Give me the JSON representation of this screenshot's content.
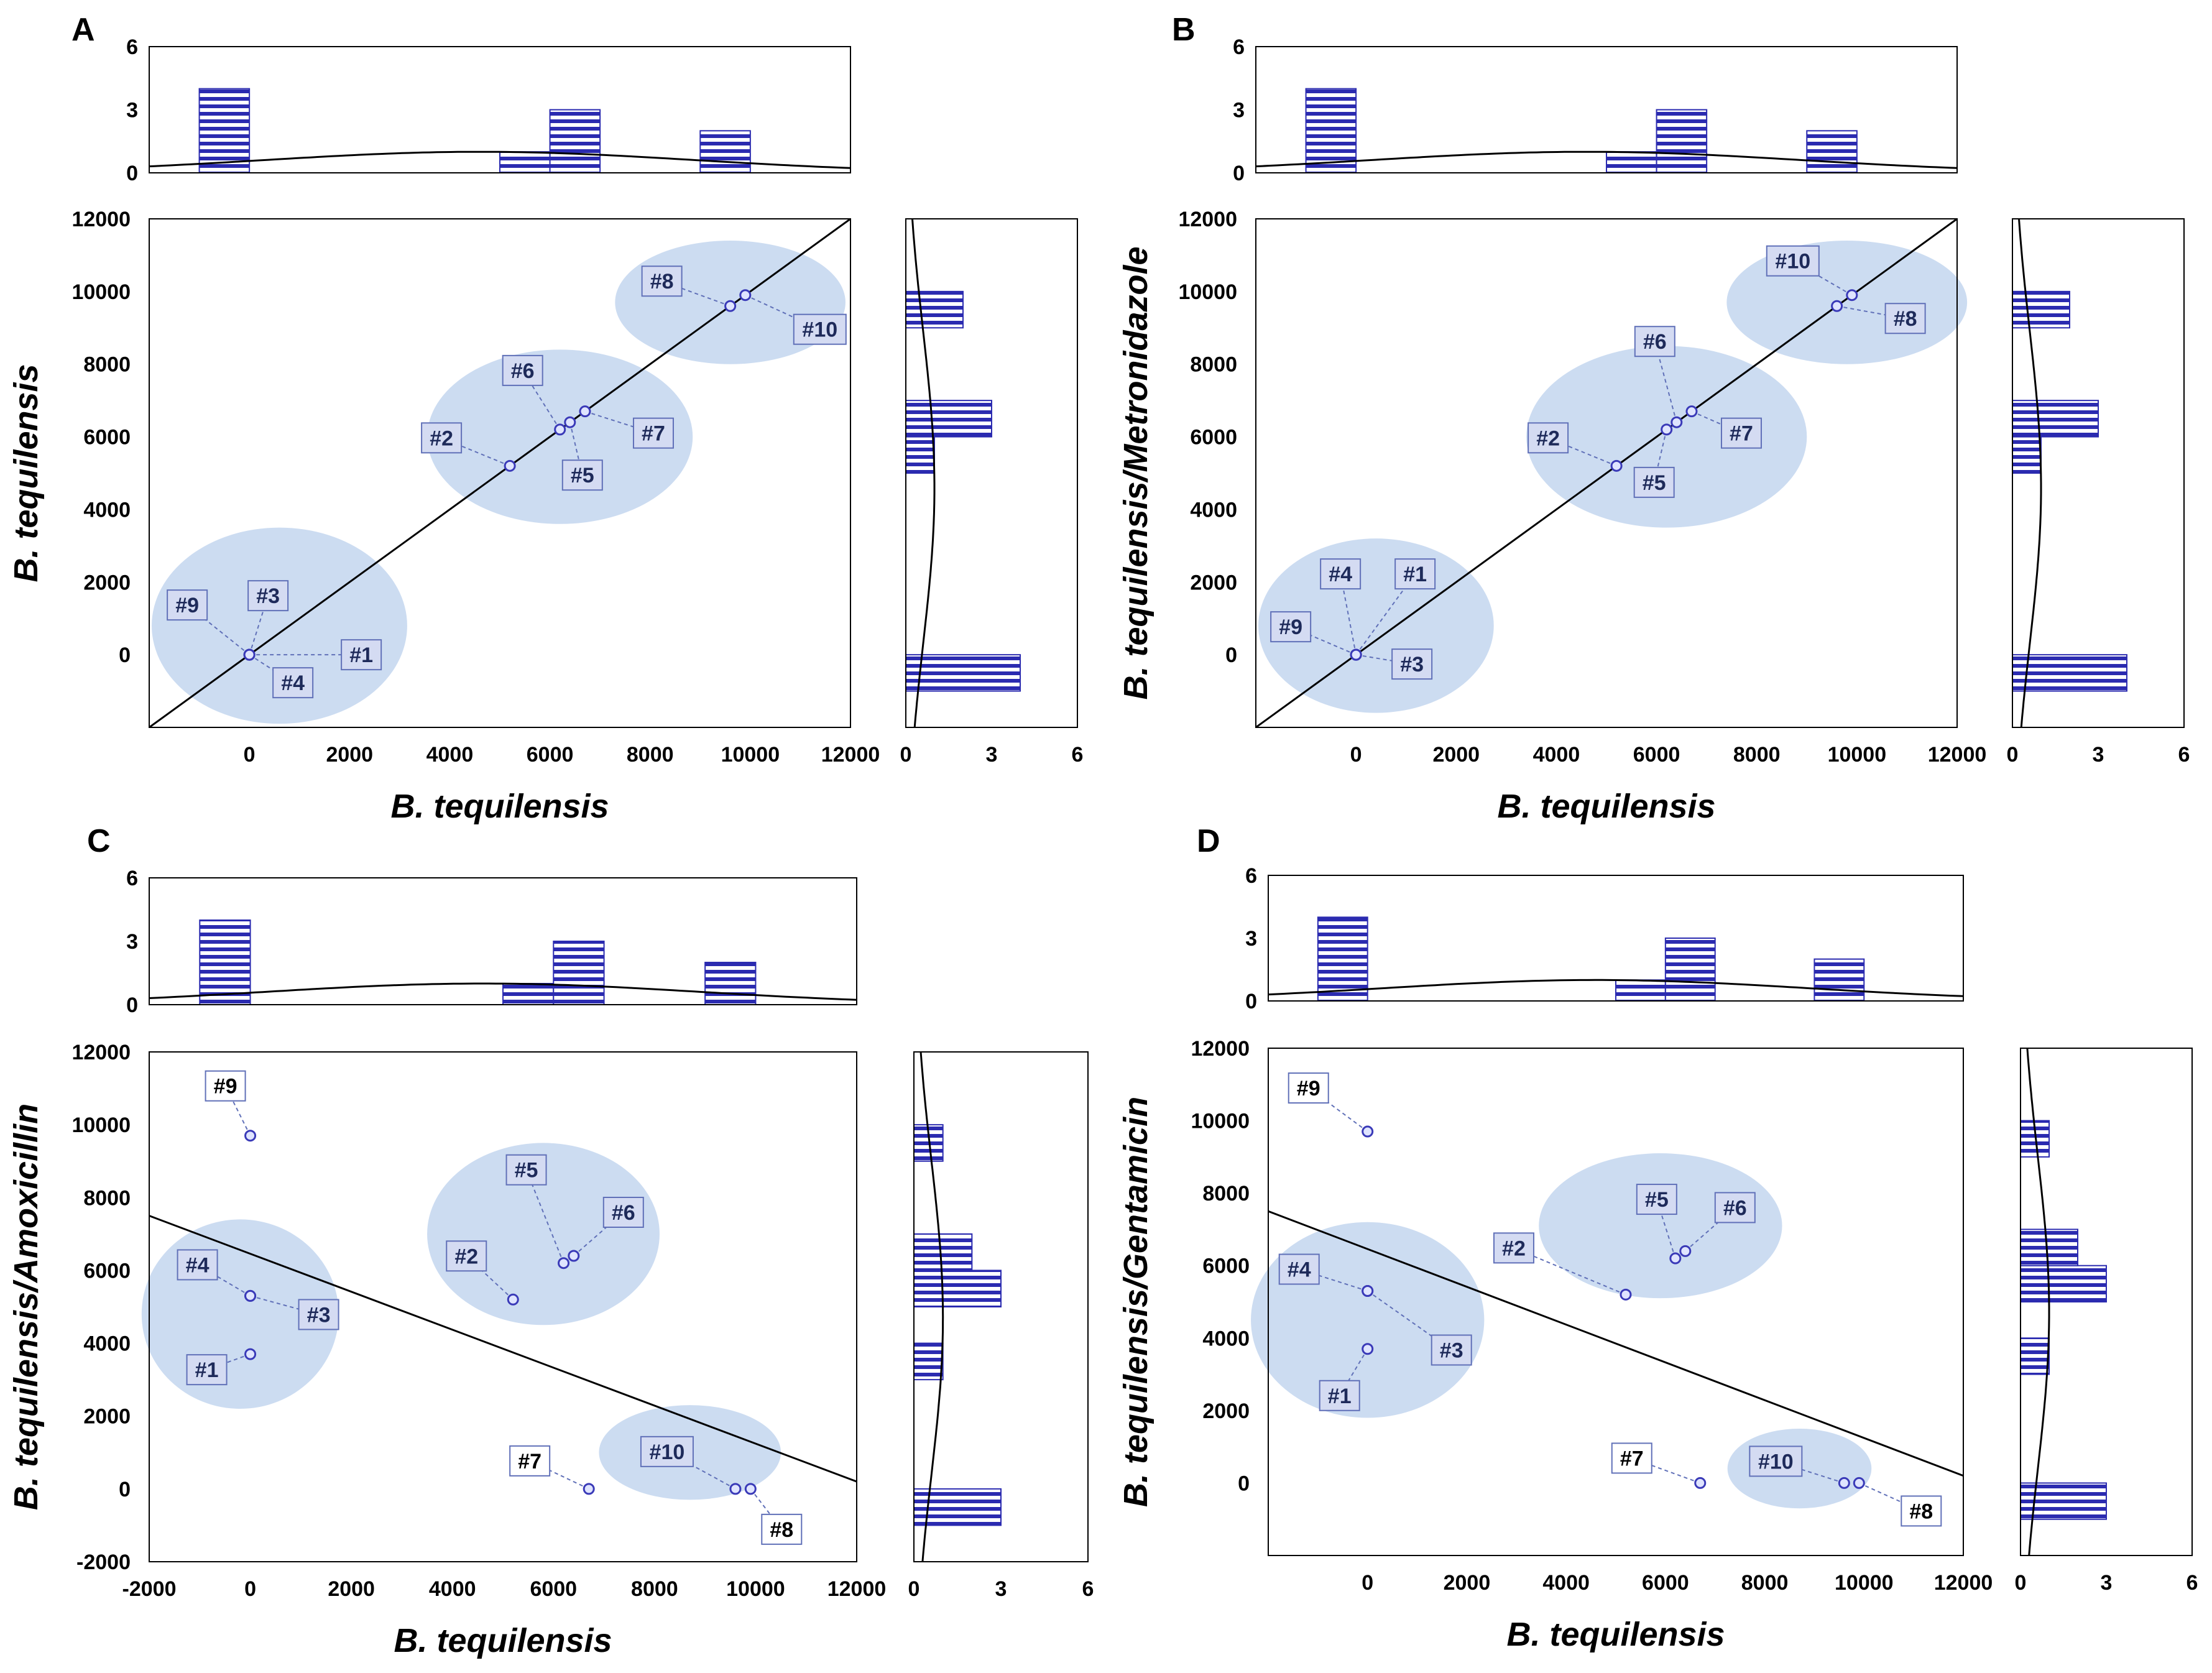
{
  "figure": {
    "description_labels": [
      "A",
      "B",
      "C",
      "D"
    ]
  },
  "colors": {
    "ellipse": "#c6d8ef",
    "bar_stripe": "#2b2bb0",
    "point": "#3a3ab8",
    "label_bg": "#d4dbf2",
    "label_border": "#6070b8",
    "label_bg_white": "#ffffff"
  },
  "chart_data": [
    {
      "panel": "A",
      "type": "scatter",
      "xlabel": "B. tequilensis",
      "ylabel": "B. tequilensis",
      "xlim": [
        -2000,
        12000
      ],
      "ylim": [
        -2000,
        12000
      ],
      "x_ticks": [
        "0",
        "2000",
        "4000",
        "6000",
        "8000",
        "10000",
        "12000"
      ],
      "y_ticks": [
        "0",
        "2000",
        "4000",
        "6000",
        "8000",
        "10000",
        "12000"
      ],
      "line": [
        [
          -2000,
          -2000
        ],
        [
          12000,
          12000
        ]
      ],
      "points": [
        {
          "label": "#1",
          "x": 0,
          "y": 0
        },
        {
          "label": "#2",
          "x": 5200,
          "y": 5200
        },
        {
          "label": "#3",
          "x": 0,
          "y": 0
        },
        {
          "label": "#4",
          "x": 0,
          "y": 0
        },
        {
          "label": "#5",
          "x": 6400,
          "y": 6400
        },
        {
          "label": "#6",
          "x": 6200,
          "y": 6200
        },
        {
          "label": "#7",
          "x": 6700,
          "y": 6700
        },
        {
          "label": "#8",
          "x": 9600,
          "y": 9600
        },
        {
          "label": "#9",
          "x": 0,
          "y": 0
        },
        {
          "label": "#10",
          "x": 9900,
          "y": 9900
        }
      ],
      "top_hist": {
        "ylim": [
          0,
          6
        ],
        "y_ticks": [
          "0",
          "3",
          "6"
        ],
        "bins": [
          {
            "x0": -1000,
            "x1": 0,
            "count": 4
          },
          {
            "x0": 5000,
            "x1": 6000,
            "count": 1
          },
          {
            "x0": 6000,
            "x1": 7000,
            "count": 3
          },
          {
            "x0": 9000,
            "x1": 10000,
            "count": 2
          }
        ]
      },
      "right_hist": {
        "xlim": [
          0,
          6
        ],
        "x_ticks": [
          "0",
          "3",
          "6"
        ],
        "bins": [
          {
            "y0": -1000,
            "y1": 0,
            "count": 4
          },
          {
            "y0": 5000,
            "y1": 6000,
            "count": 1
          },
          {
            "y0": 6000,
            "y1": 7000,
            "count": 3
          },
          {
            "y0": 9000,
            "y1": 10000,
            "count": 2
          }
        ]
      }
    },
    {
      "panel": "B",
      "type": "scatter",
      "xlabel": "B. tequilensis",
      "ylabel": "B. tequilensis/Metronidazole",
      "xlim": [
        -2000,
        12000
      ],
      "ylim": [
        -2000,
        12000
      ],
      "x_ticks": [
        "0",
        "2000",
        "4000",
        "6000",
        "8000",
        "10000",
        "12000"
      ],
      "y_ticks": [
        "0",
        "2000",
        "4000",
        "6000",
        "8000",
        "10000",
        "12000"
      ],
      "line": [
        [
          -2000,
          -2000
        ],
        [
          12000,
          12000
        ]
      ],
      "points": [
        {
          "label": "#1",
          "x": 0,
          "y": 0
        },
        {
          "label": "#2",
          "x": 5200,
          "y": 5200
        },
        {
          "label": "#3",
          "x": 0,
          "y": 0
        },
        {
          "label": "#4",
          "x": 0,
          "y": 0
        },
        {
          "label": "#5",
          "x": 6200,
          "y": 6200
        },
        {
          "label": "#6",
          "x": 6400,
          "y": 6400
        },
        {
          "label": "#7",
          "x": 6700,
          "y": 6700
        },
        {
          "label": "#8",
          "x": 9600,
          "y": 9600
        },
        {
          "label": "#9",
          "x": 0,
          "y": 0
        },
        {
          "label": "#10",
          "x": 9900,
          "y": 9900
        }
      ],
      "top_hist": {
        "ylim": [
          0,
          6
        ],
        "y_ticks": [
          "0",
          "3",
          "6"
        ],
        "bins": [
          {
            "x0": -1000,
            "x1": 0,
            "count": 4
          },
          {
            "x0": 5000,
            "x1": 6000,
            "count": 1
          },
          {
            "x0": 6000,
            "x1": 7000,
            "count": 3
          },
          {
            "x0": 9000,
            "x1": 10000,
            "count": 2
          }
        ]
      },
      "right_hist": {
        "xlim": [
          0,
          6
        ],
        "x_ticks": [
          "0",
          "3",
          "6"
        ],
        "bins": [
          {
            "y0": -1000,
            "y1": 0,
            "count": 4
          },
          {
            "y0": 5000,
            "y1": 6000,
            "count": 1
          },
          {
            "y0": 6000,
            "y1": 7000,
            "count": 3
          },
          {
            "y0": 9000,
            "y1": 10000,
            "count": 2
          }
        ]
      }
    },
    {
      "panel": "C",
      "type": "scatter",
      "xlabel": "B. tequilensis",
      "ylabel": "B. tequilensis/Amoxicillin",
      "xlim": [
        -2000,
        12000
      ],
      "ylim": [
        -2000,
        12000
      ],
      "x_ticks": [
        "-2000",
        "0",
        "2000",
        "4000",
        "6000",
        "8000",
        "10000",
        "12000"
      ],
      "y_ticks": [
        "-2000",
        "0",
        "2000",
        "4000",
        "6000",
        "8000",
        "10000",
        "12000"
      ],
      "line": [
        [
          -2000,
          7500
        ],
        [
          12000,
          200
        ]
      ],
      "points": [
        {
          "label": "#1",
          "x": 0,
          "y": 3700
        },
        {
          "label": "#2",
          "x": 5200,
          "y": 5200
        },
        {
          "label": "#3",
          "x": 0,
          "y": 5300
        },
        {
          "label": "#4",
          "x": 0,
          "y": 5300
        },
        {
          "label": "#5",
          "x": 6200,
          "y": 6200
        },
        {
          "label": "#6",
          "x": 6400,
          "y": 6400
        },
        {
          "label": "#7",
          "x": 6700,
          "y": 0
        },
        {
          "label": "#8",
          "x": 9900,
          "y": 0
        },
        {
          "label": "#9",
          "x": 0,
          "y": 9700
        },
        {
          "label": "#10",
          "x": 9600,
          "y": 0
        }
      ],
      "top_hist": {
        "ylim": [
          0,
          6
        ],
        "y_ticks": [
          "0",
          "3",
          "6"
        ],
        "bins": [
          {
            "x0": -1000,
            "x1": 0,
            "count": 4
          },
          {
            "x0": 5000,
            "x1": 6000,
            "count": 1
          },
          {
            "x0": 6000,
            "x1": 7000,
            "count": 3
          },
          {
            "x0": 9000,
            "x1": 10000,
            "count": 2
          }
        ]
      },
      "right_hist": {
        "xlim": [
          0,
          6
        ],
        "x_ticks": [
          "0",
          "3",
          "6"
        ],
        "bins": [
          {
            "y0": -1000,
            "y1": 0,
            "count": 3
          },
          {
            "y0": 3000,
            "y1": 4000,
            "count": 1
          },
          {
            "y0": 5000,
            "y1": 6000,
            "count": 3
          },
          {
            "y0": 6000,
            "y1": 7000,
            "count": 2
          },
          {
            "y0": 9000,
            "y1": 10000,
            "count": 1
          }
        ]
      }
    },
    {
      "panel": "D",
      "type": "scatter",
      "xlabel": "B. tequilensis",
      "ylabel": "B. tequilensis/Gentamicin",
      "xlim": [
        -2000,
        12000
      ],
      "ylim": [
        -2000,
        12000
      ],
      "x_ticks": [
        "0",
        "2000",
        "4000",
        "6000",
        "8000",
        "10000",
        "12000"
      ],
      "y_ticks": [
        "0",
        "2000",
        "4000",
        "6000",
        "8000",
        "10000",
        "12000"
      ],
      "line": [
        [
          -2000,
          7500
        ],
        [
          12000,
          200
        ]
      ],
      "points": [
        {
          "label": "#1",
          "x": 0,
          "y": 3700
        },
        {
          "label": "#2",
          "x": 5200,
          "y": 5200
        },
        {
          "label": "#3",
          "x": 0,
          "y": 5300
        },
        {
          "label": "#4",
          "x": 0,
          "y": 5300
        },
        {
          "label": "#5",
          "x": 6200,
          "y": 6200
        },
        {
          "label": "#6",
          "x": 6400,
          "y": 6400
        },
        {
          "label": "#7",
          "x": 6700,
          "y": 0
        },
        {
          "label": "#8",
          "x": 9900,
          "y": 0
        },
        {
          "label": "#9",
          "x": 0,
          "y": 9700
        },
        {
          "label": "#10",
          "x": 9600,
          "y": 0
        }
      ],
      "top_hist": {
        "ylim": [
          0,
          6
        ],
        "y_ticks": [
          "0",
          "3",
          "6"
        ],
        "bins": [
          {
            "x0": -1000,
            "x1": 0,
            "count": 4
          },
          {
            "x0": 5000,
            "x1": 6000,
            "count": 1
          },
          {
            "x0": 6000,
            "x1": 7000,
            "count": 3
          },
          {
            "x0": 9000,
            "x1": 10000,
            "count": 2
          }
        ]
      },
      "right_hist": {
        "xlim": [
          0,
          6
        ],
        "x_ticks": [
          "0",
          "3",
          "6"
        ],
        "bins": [
          {
            "y0": -1000,
            "y1": 0,
            "count": 3
          },
          {
            "y0": 3000,
            "y1": 4000,
            "count": 1
          },
          {
            "y0": 5000,
            "y1": 6000,
            "count": 3
          },
          {
            "y0": 6000,
            "y1": 7000,
            "count": 2
          },
          {
            "y0": 9000,
            "y1": 10000,
            "count": 1
          }
        ]
      }
    }
  ]
}
